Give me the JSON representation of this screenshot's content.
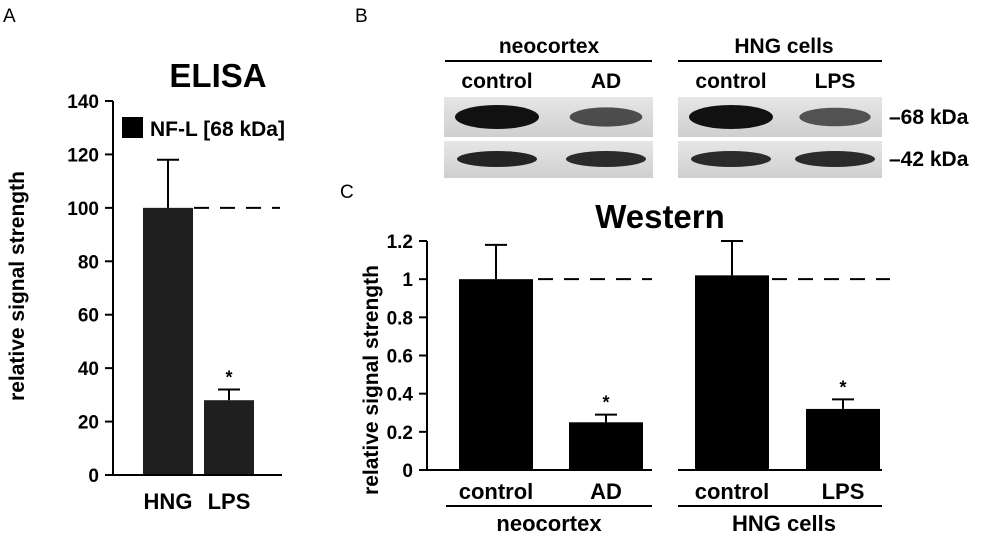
{
  "panel_labels": {
    "a": "A",
    "b": "B",
    "c": "C"
  },
  "colors": {
    "bar": "#000000",
    "bar_a": "#1f1f1f",
    "blot_bg": "#d8d8d8"
  },
  "blot": {
    "group_labels": [
      "neocortex",
      "HNG cells"
    ],
    "lane_labels": [
      "control",
      "AD",
      "control",
      "LPS"
    ],
    "band_labels": [
      "–68 kDa",
      "–42 kDa"
    ],
    "band68_intensity": [
      1.0,
      0.55,
      1.0,
      0.5
    ],
    "band42_intensity": [
      0.9,
      0.85,
      0.85,
      0.85
    ]
  },
  "chart_data": [
    {
      "type": "bar",
      "title": "ELISA",
      "ylabel": "relative signal strength",
      "xlabel": "",
      "categories": [
        "HNG",
        "LPS"
      ],
      "series": [
        {
          "name": "NF-L [68 kDa]",
          "values": [
            100,
            28
          ],
          "errors": [
            18,
            4
          ]
        }
      ],
      "ylim": [
        0,
        140
      ],
      "yticks": [
        "0",
        "20",
        "40",
        "60",
        "80",
        "100",
        "120",
        "140"
      ],
      "reference_line": 100,
      "significance": [
        "",
        "*"
      ],
      "legend": "top-left",
      "grid": false
    },
    {
      "type": "bar",
      "title": "Western",
      "ylabel": "relative signal strength",
      "xlabel": "",
      "categories": [
        "control",
        "AD",
        "control",
        "LPS"
      ],
      "groups": [
        "neocortex",
        "HNG cells"
      ],
      "values": [
        1.0,
        0.25,
        1.02,
        0.32
      ],
      "errors": [
        0.18,
        0.04,
        0.18,
        0.05
      ],
      "ylim": [
        0,
        1.2
      ],
      "yticks": [
        "0",
        "0.2",
        "0.4",
        "0.6",
        "0.8",
        "1",
        "1.2"
      ],
      "reference_line": 1,
      "significance": [
        "",
        "*",
        "",
        "*"
      ],
      "grid": false
    }
  ]
}
